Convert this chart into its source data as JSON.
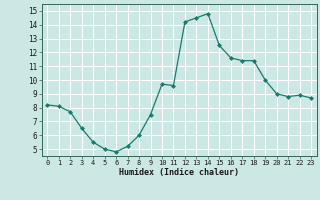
{
  "x": [
    0,
    1,
    2,
    3,
    4,
    5,
    6,
    7,
    8,
    9,
    10,
    11,
    12,
    13,
    14,
    15,
    16,
    17,
    18,
    19,
    20,
    21,
    22,
    23
  ],
  "y": [
    8.2,
    8.1,
    7.7,
    6.5,
    5.5,
    5.0,
    4.8,
    5.2,
    6.0,
    7.5,
    9.7,
    9.6,
    14.2,
    14.5,
    14.8,
    12.5,
    11.6,
    11.4,
    11.4,
    10.0,
    9.0,
    8.8,
    8.9,
    8.7
  ],
  "title": "",
  "xlabel": "Humidex (Indice chaleur)",
  "ylabel": "",
  "line_color": "#1a7a6e",
  "bg_color": "#cce8e4",
  "grid_color": "#ffffff",
  "xlim": [
    -0.5,
    23.5
  ],
  "ylim": [
    4.5,
    15.5
  ],
  "yticks": [
    5,
    6,
    7,
    8,
    9,
    10,
    11,
    12,
    13,
    14,
    15
  ],
  "xticks": [
    0,
    1,
    2,
    3,
    4,
    5,
    6,
    7,
    8,
    9,
    10,
    11,
    12,
    13,
    14,
    15,
    16,
    17,
    18,
    19,
    20,
    21,
    22,
    23
  ]
}
